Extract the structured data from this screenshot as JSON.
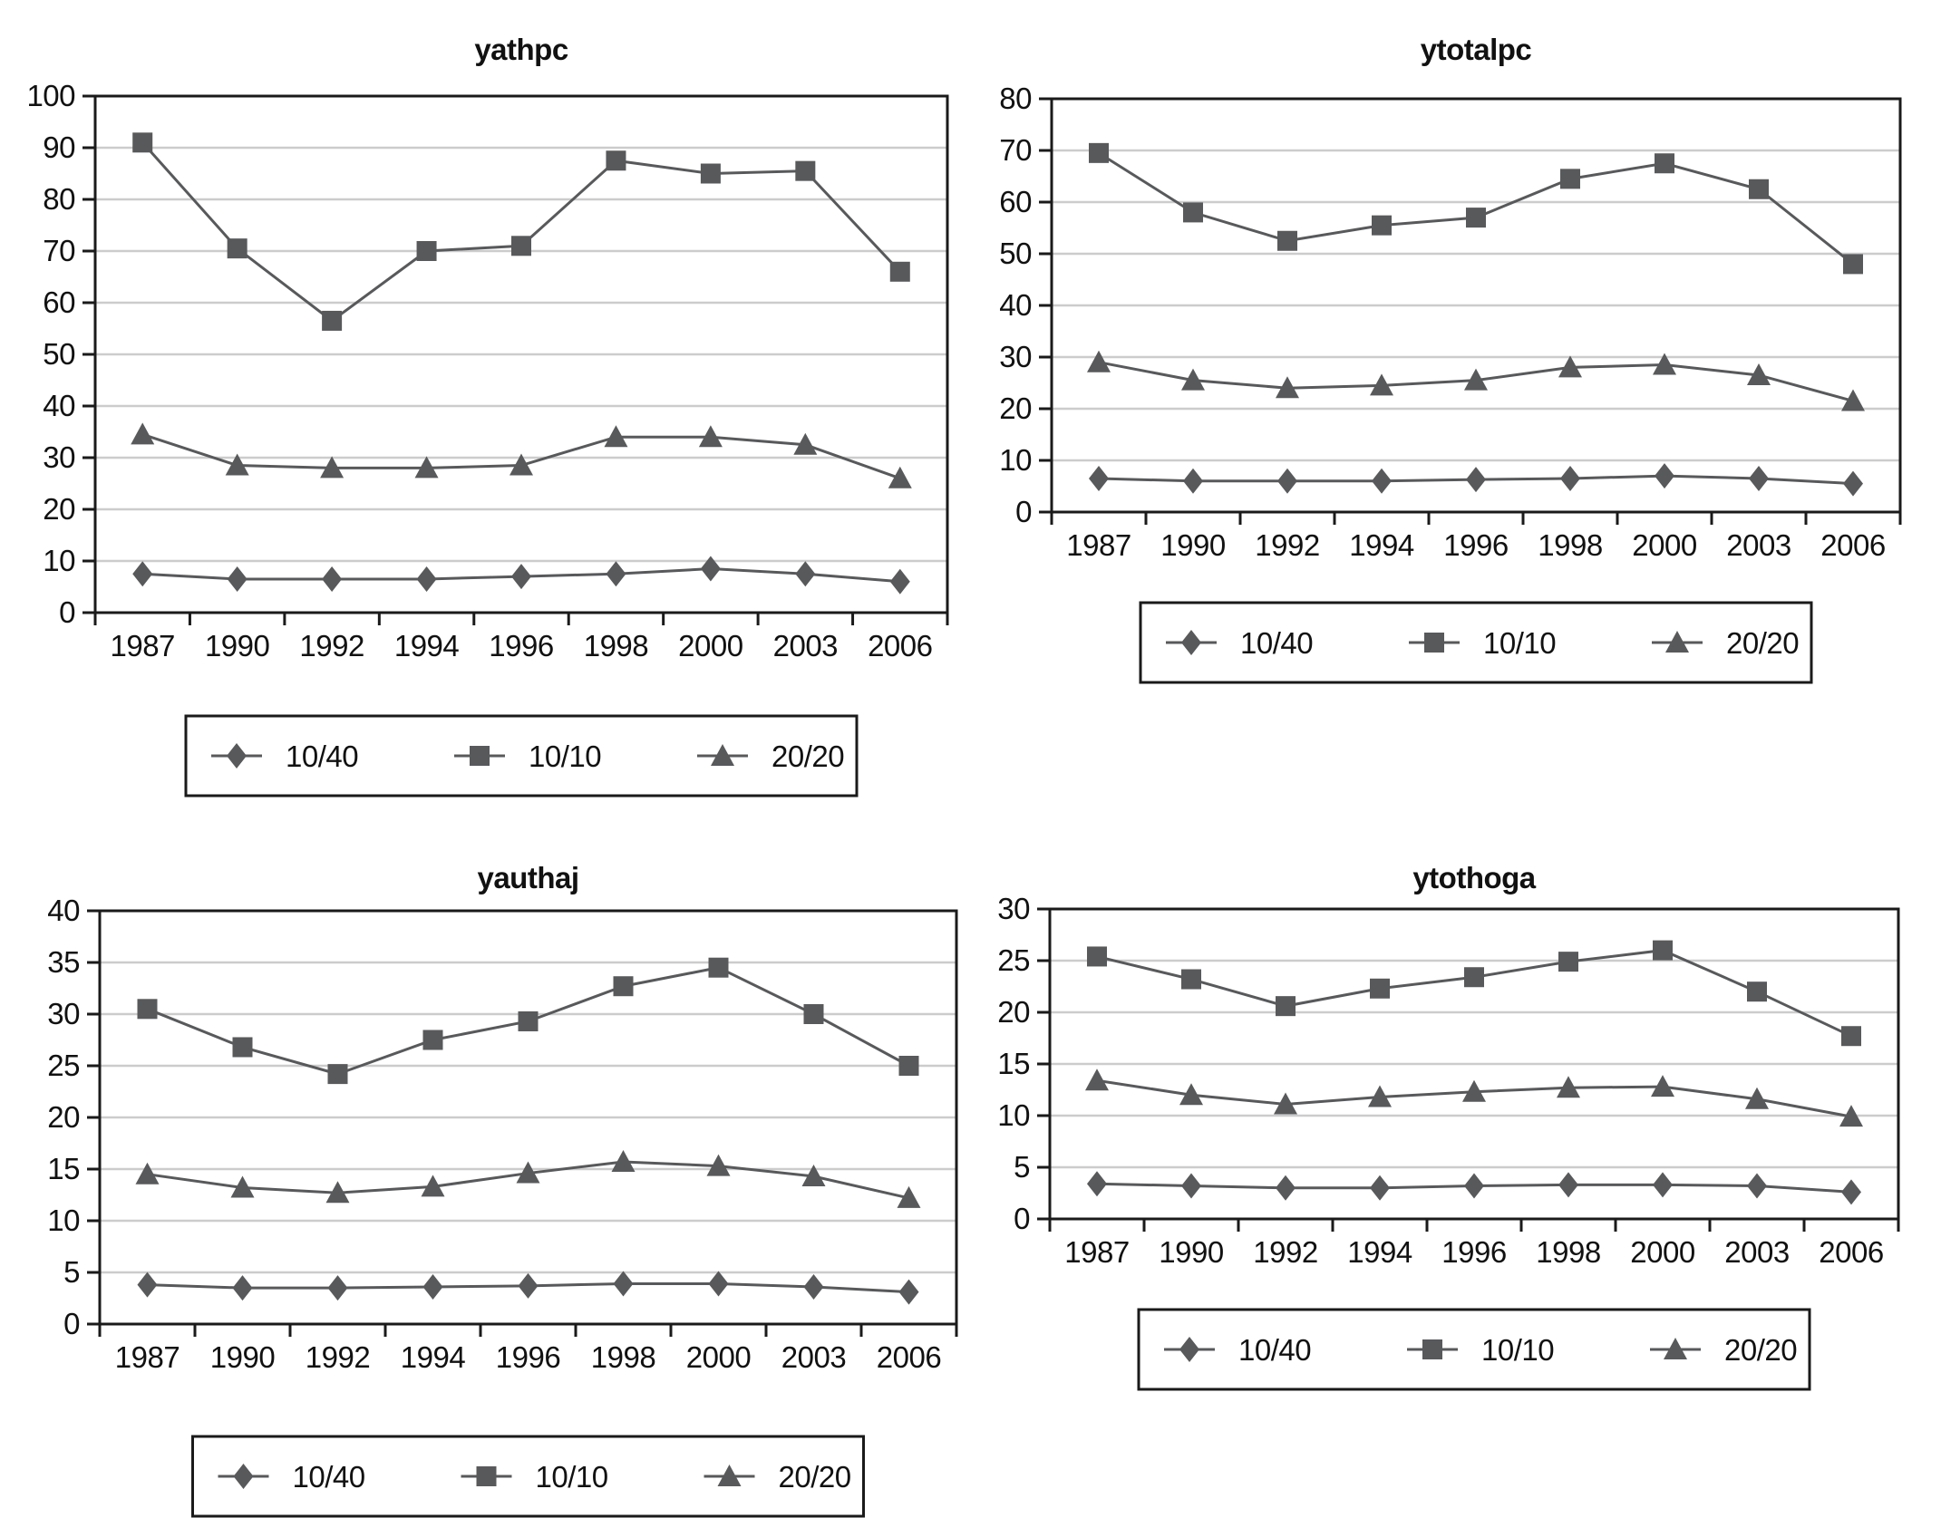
{
  "figure": {
    "background": "#ffffff"
  },
  "colors": {
    "series": "#58595b",
    "grid": "#cccccc",
    "axis": "#1a1a1a",
    "text": "#111111",
    "legend_border": "#1a1a1a"
  },
  "chart_data": [
    {
      "type": "line",
      "title": "yathpc",
      "categories": [
        "1987",
        "1990",
        "1992",
        "1994",
        "1996",
        "1998",
        "2000",
        "2003",
        "2006"
      ],
      "ylim": [
        0,
        100
      ],
      "ytick_step": 10,
      "grid": "horizontal",
      "legend_position": "below-center",
      "series": [
        {
          "name": "10/40",
          "marker": "diamond",
          "values": [
            7.5,
            6.5,
            6.5,
            6.5,
            7,
            7.5,
            8.5,
            7.5,
            6
          ]
        },
        {
          "name": "10/10",
          "marker": "square",
          "values": [
            91,
            70.5,
            56.5,
            70,
            71,
            87.5,
            85,
            85.5,
            66
          ]
        },
        {
          "name": "20/20",
          "marker": "triangle",
          "values": [
            34.5,
            28.5,
            28,
            28,
            28.5,
            34,
            34,
            32.5,
            26
          ]
        }
      ]
    },
    {
      "type": "line",
      "title": "ytotalpc",
      "categories": [
        "1987",
        "1990",
        "1992",
        "1994",
        "1996",
        "1998",
        "2000",
        "2003",
        "2006"
      ],
      "ylim": [
        0,
        80
      ],
      "ytick_step": 10,
      "grid": "horizontal",
      "legend_position": "below-center",
      "series": [
        {
          "name": "10/40",
          "marker": "diamond",
          "values": [
            6.5,
            6,
            6,
            6,
            6.3,
            6.5,
            7,
            6.5,
            5.5
          ]
        },
        {
          "name": "10/10",
          "marker": "square",
          "values": [
            69.5,
            58,
            52.5,
            55.5,
            57,
            64.5,
            67.5,
            62.5,
            48
          ]
        },
        {
          "name": "20/20",
          "marker": "triangle",
          "values": [
            29,
            25.5,
            24,
            24.5,
            25.5,
            28,
            28.5,
            26.5,
            21.5
          ]
        }
      ]
    },
    {
      "type": "line",
      "title": "yauthaj",
      "categories": [
        "1987",
        "1990",
        "1992",
        "1994",
        "1996",
        "1998",
        "2000",
        "2003",
        "2006"
      ],
      "ylim": [
        0,
        40
      ],
      "ytick_step": 5,
      "grid": "horizontal",
      "legend_position": "below-center",
      "series": [
        {
          "name": "10/40",
          "marker": "diamond",
          "values": [
            3.8,
            3.5,
            3.5,
            3.6,
            3.7,
            3.9,
            3.9,
            3.6,
            3.1
          ]
        },
        {
          "name": "10/10",
          "marker": "square",
          "values": [
            30.5,
            26.8,
            24.2,
            27.5,
            29.3,
            32.7,
            34.5,
            30,
            25
          ]
        },
        {
          "name": "20/20",
          "marker": "triangle",
          "values": [
            14.5,
            13.2,
            12.7,
            13.3,
            14.6,
            15.7,
            15.3,
            14.3,
            12.2
          ]
        }
      ]
    },
    {
      "type": "line",
      "title": "ytothoga",
      "categories": [
        "1987",
        "1990",
        "1992",
        "1994",
        "1996",
        "1998",
        "2000",
        "2003",
        "2006"
      ],
      "ylim": [
        0,
        30
      ],
      "ytick_step": 5,
      "grid": "horizontal",
      "legend_position": "below-center",
      "series": [
        {
          "name": "10/40",
          "marker": "diamond",
          "values": [
            3.4,
            3.2,
            3,
            3,
            3.2,
            3.3,
            3.3,
            3.2,
            2.6
          ]
        },
        {
          "name": "10/10",
          "marker": "square",
          "values": [
            25.4,
            23.2,
            20.6,
            22.3,
            23.4,
            24.9,
            26,
            22,
            17.7
          ]
        },
        {
          "name": "20/20",
          "marker": "triangle",
          "values": [
            13.4,
            12,
            11.1,
            11.8,
            12.3,
            12.7,
            12.8,
            11.6,
            9.9
          ]
        }
      ]
    }
  ]
}
